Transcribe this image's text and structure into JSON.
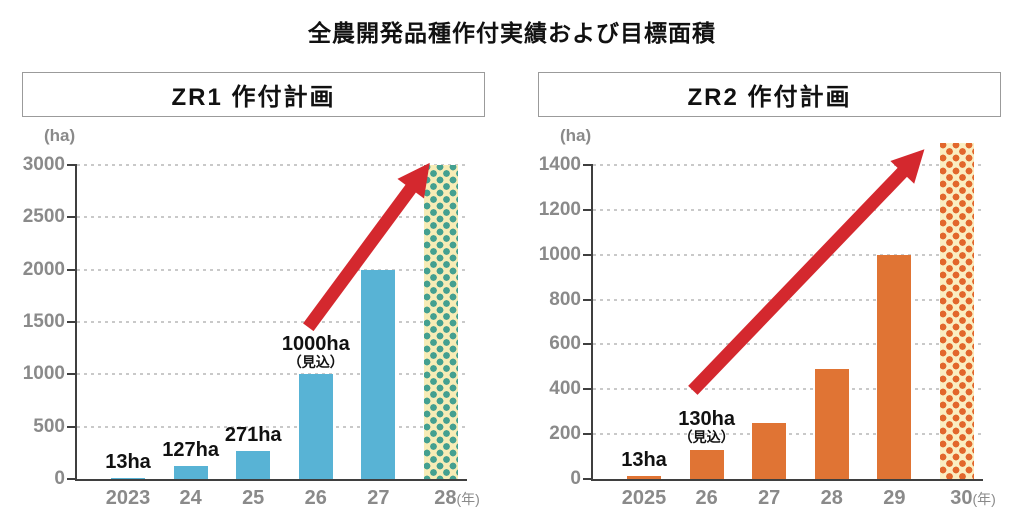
{
  "page": {
    "title": "全農開発品種作付実績および目標面積",
    "background": "#ffffff"
  },
  "colors": {
    "axis_text": "#8a8a8a",
    "axis_line": "#3f3f3f",
    "gridline": "#c9c9c9",
    "label_text": "#111111",
    "panel_border": "#9b9b9b",
    "arrow_red": "#d4282e",
    "zr1_bar_blue": "#58b3d5",
    "zr2_bar_orange": "#e07434"
  },
  "charts": [
    {
      "panel_title": "ZR1 作付計画",
      "unit_label": "(ha)",
      "year_suffix": "(年)",
      "chart_data": {
        "type": "bar",
        "title": "ZR1 作付計画",
        "categories": [
          "2023",
          "24",
          "25",
          "26",
          "27",
          "28"
        ],
        "values": [
          13,
          127,
          271,
          1000,
          2000,
          3000
        ],
        "ylabel": "(ha)",
        "xlabel": "(年)",
        "ylim": [
          0,
          3000
        ],
        "ytick_step": 500,
        "yticks": [
          0,
          500,
          1000,
          1500,
          2000,
          2500,
          3000
        ],
        "grid": true,
        "legend": false,
        "bar_color": "#58b3d5",
        "forecast_bar": {
          "index": 5,
          "value": 3000,
          "fill": "#f7ecb6",
          "dot_color": "#44a090"
        },
        "value_labels": [
          {
            "index": 0,
            "text": "13ha",
            "sub": ""
          },
          {
            "index": 1,
            "text": "127ha",
            "sub": ""
          },
          {
            "index": 2,
            "text": "271ha",
            "sub": ""
          },
          {
            "index": 3,
            "text": "1000ha",
            "sub": "（見込）"
          }
        ],
        "trend_arrow": {
          "color": "#d4282e",
          "x_index_start": 2.88,
          "y_start": 1450,
          "x_index_end": 4.82,
          "y_end": 3020
        }
      }
    },
    {
      "panel_title": "ZR2 作付計画",
      "unit_label": "(ha)",
      "year_suffix": "(年)",
      "chart_data": {
        "type": "bar",
        "title": "ZR2 作付計画",
        "categories": [
          "2025",
          "26",
          "27",
          "28",
          "29",
          "30"
        ],
        "values": [
          13,
          130,
          250,
          490,
          1000,
          1500
        ],
        "ylabel": "(ha)",
        "xlabel": "(年)",
        "ylim": [
          0,
          1400
        ],
        "ytick_step": 200,
        "yticks": [
          0,
          200,
          400,
          600,
          800,
          1000,
          1200,
          1400
        ],
        "grid": true,
        "legend": false,
        "bar_color": "#e07434",
        "forecast_bar": {
          "index": 5,
          "value": 1500,
          "fill": "#faeec2",
          "dot_color": "#e2672c"
        },
        "value_labels": [
          {
            "index": 0,
            "text": "13ha",
            "sub": ""
          },
          {
            "index": 1,
            "text": "130ha",
            "sub": "（見込）"
          }
        ],
        "trend_arrow": {
          "color": "#d4282e",
          "x_index_start": 0.78,
          "y_start": 395,
          "x_index_end": 4.48,
          "y_end": 1470
        }
      }
    }
  ]
}
